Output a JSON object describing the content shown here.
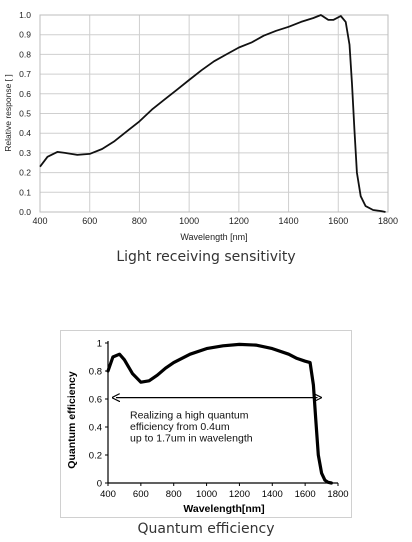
{
  "chart_data": [
    {
      "type": "line",
      "title": "",
      "caption": "Light receiving sensitivity",
      "xlabel": "Wavelength [nm]",
      "ylabel": "Relative response [ ]",
      "xlim": [
        400,
        1800
      ],
      "ylim": [
        0,
        1.0
      ],
      "xticks": [
        "400",
        "600",
        "800",
        "1000",
        "1200",
        "1400",
        "1600",
        "1800"
      ],
      "yticks": [
        "0.0",
        "0.1",
        "0.2",
        "0.3",
        "0.4",
        "0.5",
        "0.6",
        "0.7",
        "0.8",
        "0.9",
        "1.0"
      ],
      "grid": true,
      "line_color": "#111111",
      "x": [
        400,
        430,
        470,
        500,
        550,
        600,
        650,
        700,
        750,
        800,
        850,
        900,
        950,
        1000,
        1050,
        1100,
        1150,
        1200,
        1250,
        1300,
        1350,
        1400,
        1450,
        1500,
        1530,
        1560,
        1580,
        1610,
        1630,
        1645,
        1655,
        1665,
        1675,
        1690,
        1710,
        1740,
        1770,
        1790
      ],
      "y": [
        0.23,
        0.28,
        0.305,
        0.3,
        0.29,
        0.295,
        0.32,
        0.36,
        0.41,
        0.46,
        0.52,
        0.57,
        0.62,
        0.67,
        0.72,
        0.765,
        0.8,
        0.835,
        0.86,
        0.895,
        0.92,
        0.94,
        0.965,
        0.985,
        1.0,
        0.975,
        0.975,
        0.995,
        0.965,
        0.85,
        0.65,
        0.42,
        0.2,
        0.08,
        0.03,
        0.01,
        0.005,
        0.0
      ]
    },
    {
      "type": "line",
      "title": "",
      "caption": "Quantum efficiency",
      "xlabel": "Wavelength[nm]",
      "ylabel": "Quantum efficiency",
      "xlim": [
        400,
        1800
      ],
      "ylim": [
        0,
        1
      ],
      "xticks": [
        "400",
        "600",
        "800",
        "1000",
        "1200",
        "1400",
        "1600",
        "1800"
      ],
      "yticks": [
        "0",
        "0.2",
        "0.4",
        "0.6",
        "0.8",
        "1"
      ],
      "grid": false,
      "line_color": "#000000",
      "annotation": "Realizing a high quantum\nefficiency from 0.4um\nup to 1.7um in wavelength",
      "arrow_from": 400,
      "arrow_to": 1700,
      "arrow_y": 0.61,
      "x": [
        400,
        430,
        470,
        500,
        550,
        600,
        650,
        700,
        750,
        800,
        900,
        1000,
        1100,
        1200,
        1300,
        1400,
        1500,
        1550,
        1600,
        1630,
        1650,
        1665,
        1680,
        1700,
        1720,
        1740,
        1760
      ],
      "y": [
        0.8,
        0.9,
        0.92,
        0.88,
        0.78,
        0.72,
        0.73,
        0.77,
        0.82,
        0.86,
        0.92,
        0.96,
        0.98,
        0.99,
        0.985,
        0.96,
        0.92,
        0.89,
        0.87,
        0.86,
        0.7,
        0.45,
        0.2,
        0.07,
        0.02,
        0.005,
        0.0
      ]
    }
  ]
}
